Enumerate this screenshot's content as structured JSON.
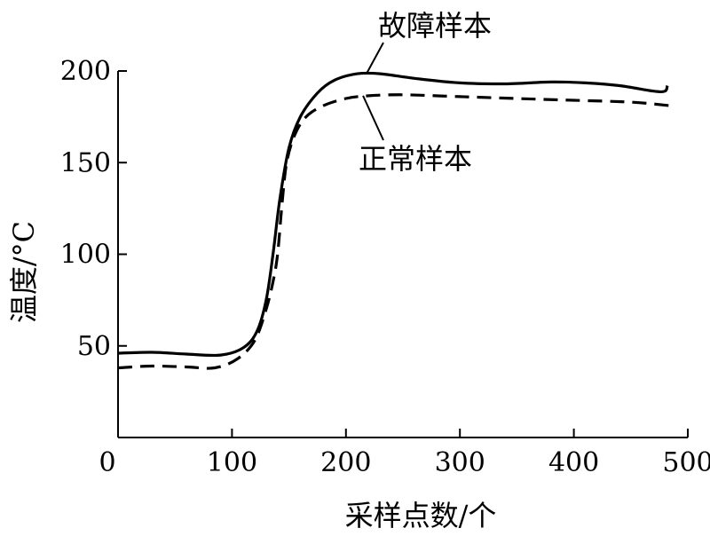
{
  "chart_data": {
    "type": "line",
    "xlabel": "采样点数/个",
    "ylabel": "温度/°C",
    "xlim": [
      0,
      500
    ],
    "ylim": [
      0,
      200
    ],
    "xticks": [
      0,
      100,
      200,
      300,
      400,
      500
    ],
    "yticks": [
      50,
      100,
      150,
      200
    ],
    "grid": false,
    "series": [
      {
        "name": "故障样本",
        "style": "solid",
        "color": "#000000",
        "x": [
          0,
          30,
          60,
          90,
          110,
          122,
          130,
          136,
          142,
          150,
          160,
          175,
          190,
          210,
          230,
          260,
          300,
          340,
          380,
          410,
          440,
          470,
          480,
          482
        ],
        "y": [
          46,
          46.5,
          45.5,
          45,
          49,
          58,
          75,
          100,
          130,
          158,
          175,
          188,
          195,
          198.5,
          198.5,
          196,
          193.5,
          193,
          194,
          193.5,
          192,
          189,
          189,
          192
        ]
      },
      {
        "name": "正常样本",
        "style": "dashed",
        "color": "#000000",
        "x": [
          0,
          30,
          60,
          85,
          105,
          120,
          130,
          136,
          140,
          144,
          148,
          155,
          165,
          180,
          200,
          220,
          250,
          300,
          350,
          400,
          450,
          485
        ],
        "y": [
          38,
          39,
          38.5,
          38,
          43,
          53,
          70,
          85,
          100,
          128,
          150,
          165,
          175,
          181,
          185,
          186.5,
          187,
          186,
          185,
          184,
          183,
          181
        ]
      }
    ],
    "annotations": [
      {
        "text": "故障样本",
        "target_series": "故障样本",
        "target_x": 218,
        "target_y": 198.5
      },
      {
        "text": "正常样本",
        "target_series": "正常样本",
        "target_x": 215,
        "target_y": 186.5
      }
    ]
  }
}
